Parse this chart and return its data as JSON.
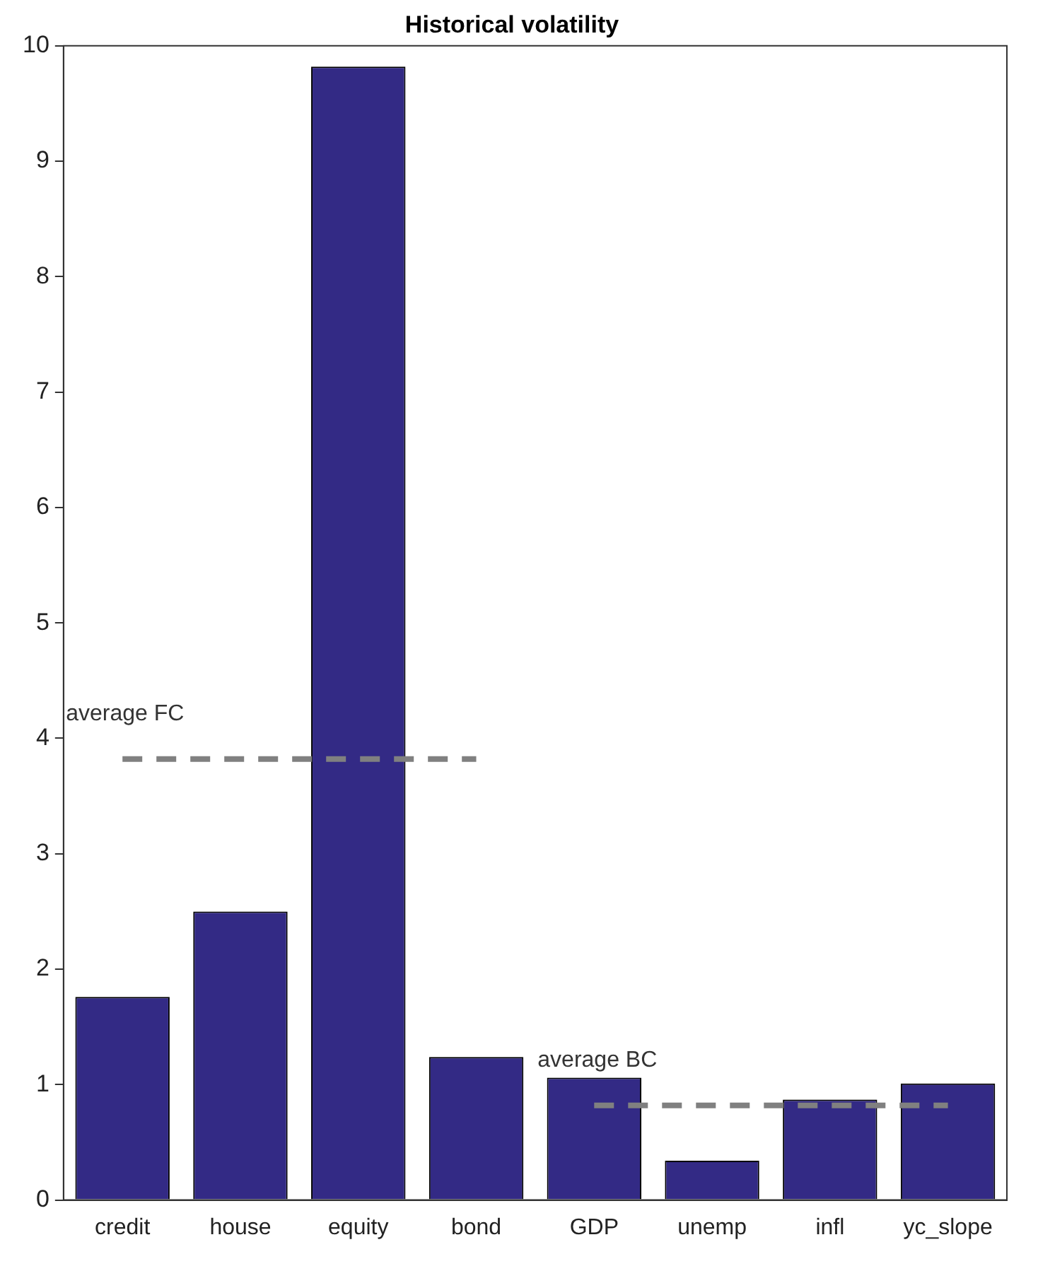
{
  "chart_data": {
    "type": "bar",
    "title": "Historical volatility",
    "categories": [
      "credit",
      "house",
      "equity",
      "bond",
      "GDP",
      "unemp",
      "infl",
      "yc_slope"
    ],
    "ylim": [
      0,
      10
    ],
    "yticks": [
      0,
      1,
      2,
      3,
      4,
      5,
      6,
      7,
      8,
      9,
      10
    ],
    "grid": false,
    "legend": false,
    "series": [
      {
        "color": "#332a85",
        "values": [
          1.76,
          2.5,
          9.82,
          1.24,
          1.06,
          0.34,
          0.87,
          1.01
        ]
      },
      {
        "type": "line",
        "name": "average FC",
        "color": "#808080",
        "marker": "none",
        "line_style": "dashed",
        "values": [
          3.82,
          3.82,
          3.82,
          3.82,
          null,
          null,
          null,
          null
        ]
      },
      {
        "type": "line",
        "name": "average BC",
        "color": "#808080",
        "marker": "none",
        "line_style": "dashed",
        "values": [
          null,
          null,
          null,
          null,
          0.82,
          0.82,
          0.82,
          0.82
        ]
      }
    ]
  }
}
